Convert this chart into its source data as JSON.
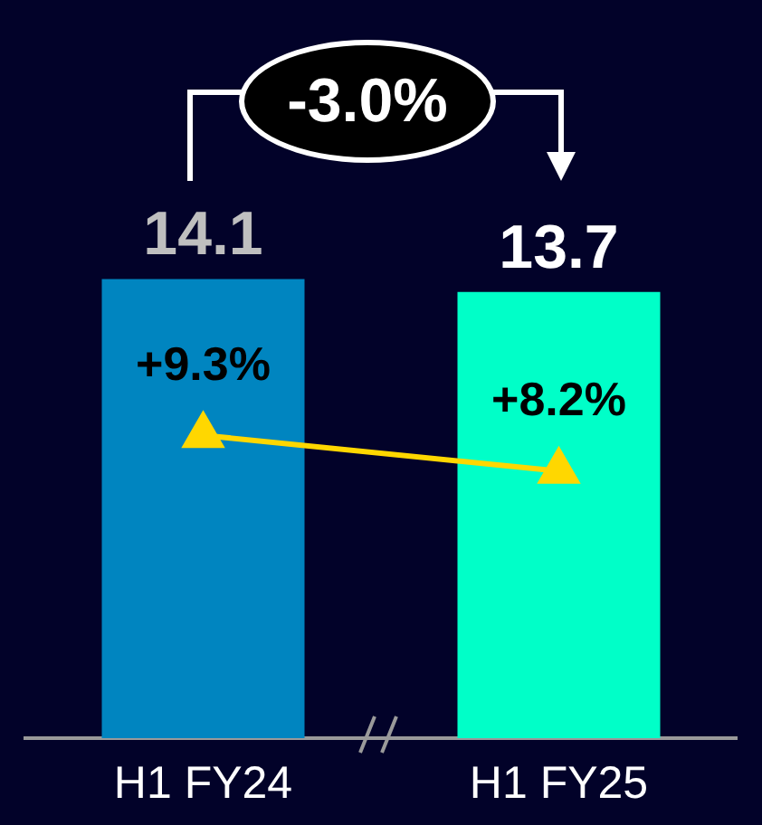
{
  "chart_data": {
    "type": "bar",
    "categories": [
      "H1 FY24",
      "H1 FY25"
    ],
    "series": [
      {
        "colors": [
          "#0085c0",
          "#00ffc8"
        ],
        "values": [
          14.1,
          13.7
        ],
        "value_labels": [
          "14.1",
          "13.7"
        ]
      },
      {
        "type": "line",
        "color": "#ffd700",
        "values": [
          9.3,
          8.2
        ],
        "value_labels": [
          "+9.3%",
          "+8.2%"
        ],
        "marker": "triangle"
      }
    ],
    "annotations": [
      "-3.0%"
    ],
    "legend": false
  }
}
